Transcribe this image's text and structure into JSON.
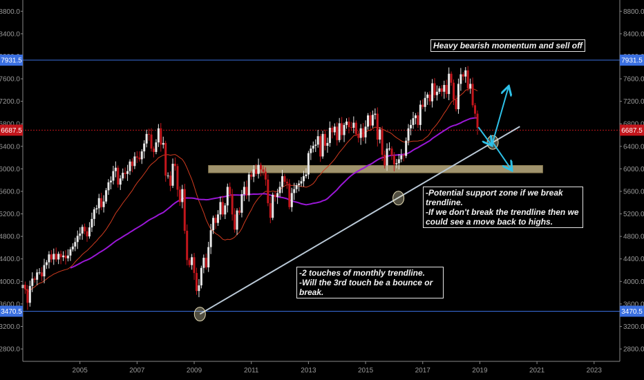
{
  "colors": {
    "background": "#000000",
    "bull": "#e8e8e8",
    "bear": "#c3161c",
    "ma_fast": "#d13b1f",
    "ma_slow": "#9a17d6",
    "trendline": "#b9c8d6",
    "level_line": "#3a6fe0",
    "current_line": "#c3161c",
    "zone": "#c9b98a",
    "arrow": "#2ec1e8"
  },
  "annotations": {
    "top": "Heavy bearish momentum and sell off",
    "middle": "-Potential support zone if we break trendline.\n-If we don't break the trendline then we\ncould see a move back to highs.",
    "bottom": "-2 touches of monthly trendline.\n-Will the 3rd touch be a bounce or break."
  },
  "price_labels": {
    "resistance": "7931.5",
    "current": "6687.5",
    "support": "3470.5"
  },
  "chart_data": {
    "type": "candlestick",
    "timeframe": "monthly",
    "y_ticks": [
      2800,
      3200,
      3600,
      4000,
      4400,
      4800,
      5200,
      5600,
      6000,
      6400,
      6800,
      7200,
      7600,
      8000,
      8400,
      8800
    ],
    "y_tick_labels": [
      "2800.0",
      "3200.0",
      "3600.0",
      "4000.0",
      "4400.0",
      "4800.0",
      "5200.0",
      "5600.0",
      "6000.0",
      "6400.0",
      "6800.0",
      "7200.0",
      "7600.0",
      "8000.0",
      "8400.0",
      "8800.0"
    ],
    "ylim": [
      2580,
      9000
    ],
    "xlim": [
      2003.0,
      2023.9
    ],
    "x_ticks": [
      2005,
      2007,
      2009,
      2011,
      2013,
      2015,
      2017,
      2019,
      2021,
      2023
    ],
    "x_tick_labels": [
      "2005",
      "2007",
      "2009",
      "2011",
      "2013",
      "2015",
      "2017",
      "2019",
      "2021",
      "2023"
    ],
    "horizontal_levels": [
      {
        "price": 7931.5,
        "kind": "resistance"
      },
      {
        "price": 6687.5,
        "kind": "current"
      },
      {
        "price": 3470.5,
        "kind": "support"
      }
    ],
    "support_zone": {
      "low": 5930,
      "high": 6060,
      "x_start": 2009.5,
      "x_end": 2021.2
    },
    "trendline": {
      "points": [
        [
          2009.2,
          3420
        ],
        [
          2016.15,
          5480
        ],
        [
          2019.45,
          6470
        ]
      ],
      "extend_to": 2020.4
    },
    "touch_markers": [
      [
        2009.2,
        3420
      ],
      [
        2016.15,
        5480
      ],
      [
        2019.45,
        6470
      ]
    ],
    "projection_arrows": [
      {
        "from": [
          2019.45,
          6470
        ],
        "to": [
          2020.0,
          7450
        ]
      },
      {
        "from": [
          2019.45,
          6470
        ],
        "to": [
          2020.1,
          5990
        ]
      },
      {
        "from": [
          2018.95,
          6740
        ],
        "to": [
          2019.4,
          6430
        ]
      }
    ],
    "closes": [
      [
        2003.0,
        3940
      ],
      [
        2003.083,
        3860
      ],
      [
        2003.167,
        3620
      ],
      [
        2003.25,
        3920
      ],
      [
        2003.333,
        4050
      ],
      [
        2003.417,
        4030
      ],
      [
        2003.5,
        4160
      ],
      [
        2003.583,
        4160
      ],
      [
        2003.667,
        4090
      ],
      [
        2003.75,
        4290
      ],
      [
        2003.833,
        4340
      ],
      [
        2003.917,
        4480
      ],
      [
        2004.0,
        4390
      ],
      [
        2004.083,
        4490
      ],
      [
        2004.167,
        4390
      ],
      [
        2004.25,
        4490
      ],
      [
        2004.333,
        4430
      ],
      [
        2004.417,
        4460
      ],
      [
        2004.5,
        4410
      ],
      [
        2004.583,
        4460
      ],
      [
        2004.667,
        4570
      ],
      [
        2004.75,
        4620
      ],
      [
        2004.833,
        4700
      ],
      [
        2004.917,
        4810
      ],
      [
        2005.0,
        4850
      ],
      [
        2005.083,
        4970
      ],
      [
        2005.167,
        4890
      ],
      [
        2005.25,
        4800
      ],
      [
        2005.333,
        4960
      ],
      [
        2005.417,
        5110
      ],
      [
        2005.5,
        5280
      ],
      [
        2005.583,
        5300
      ],
      [
        2005.667,
        5480
      ],
      [
        2005.75,
        5320
      ],
      [
        2005.833,
        5420
      ],
      [
        2005.917,
        5620
      ],
      [
        2006.0,
        5760
      ],
      [
        2006.083,
        5790
      ],
      [
        2006.167,
        5960
      ],
      [
        2006.25,
        6020
      ],
      [
        2006.333,
        5720
      ],
      [
        2006.417,
        5830
      ],
      [
        2006.5,
        5930
      ],
      [
        2006.583,
        5910
      ],
      [
        2006.667,
        5960
      ],
      [
        2006.75,
        6130
      ],
      [
        2006.833,
        6050
      ],
      [
        2006.917,
        6220
      ],
      [
        2007.0,
        6200
      ],
      [
        2007.083,
        6170
      ],
      [
        2007.167,
        6310
      ],
      [
        2007.25,
        6450
      ],
      [
        2007.333,
        6620
      ],
      [
        2007.417,
        6610
      ],
      [
        2007.5,
        6360
      ],
      [
        2007.583,
        6300
      ],
      [
        2007.667,
        6470
      ],
      [
        2007.75,
        6720
      ],
      [
        2007.833,
        6430
      ],
      [
        2007.917,
        6460
      ],
      [
        2008.0,
        5880
      ],
      [
        2008.083,
        5880
      ],
      [
        2008.167,
        5700
      ],
      [
        2008.25,
        6090
      ],
      [
        2008.333,
        6050
      ],
      [
        2008.417,
        5630
      ],
      [
        2008.5,
        5410
      ],
      [
        2008.583,
        5640
      ],
      [
        2008.667,
        4900
      ],
      [
        2008.75,
        4380
      ],
      [
        2008.833,
        4290
      ],
      [
        2008.917,
        4430
      ],
      [
        2009.0,
        4150
      ],
      [
        2009.083,
        3830
      ],
      [
        2009.167,
        3930
      ],
      [
        2009.25,
        4240
      ],
      [
        2009.333,
        4420
      ],
      [
        2009.417,
        4250
      ],
      [
        2009.5,
        4610
      ],
      [
        2009.583,
        4910
      ],
      [
        2009.667,
        5130
      ],
      [
        2009.75,
        5040
      ],
      [
        2009.833,
        5190
      ],
      [
        2009.917,
        5410
      ],
      [
        2010.0,
        5190
      ],
      [
        2010.083,
        5350
      ],
      [
        2010.167,
        5680
      ],
      [
        2010.25,
        5550
      ],
      [
        2010.333,
        5190
      ],
      [
        2010.417,
        4920
      ],
      [
        2010.5,
        5260
      ],
      [
        2010.583,
        5220
      ],
      [
        2010.667,
        5550
      ],
      [
        2010.75,
        5680
      ],
      [
        2010.833,
        5530
      ],
      [
        2010.917,
        5900
      ],
      [
        2011.0,
        5860
      ],
      [
        2011.083,
        5990
      ],
      [
        2011.167,
        5910
      ],
      [
        2011.25,
        6070
      ],
      [
        2011.333,
        5990
      ],
      [
        2011.417,
        5950
      ],
      [
        2011.5,
        5810
      ],
      [
        2011.583,
        5390
      ],
      [
        2011.667,
        5130
      ],
      [
        2011.75,
        5540
      ],
      [
        2011.833,
        5500
      ],
      [
        2011.917,
        5570
      ],
      [
        2012.0,
        5680
      ],
      [
        2012.083,
        5870
      ],
      [
        2012.167,
        5770
      ],
      [
        2012.25,
        5740
      ],
      [
        2012.333,
        5320
      ],
      [
        2012.417,
        5570
      ],
      [
        2012.5,
        5640
      ],
      [
        2012.583,
        5710
      ],
      [
        2012.667,
        5740
      ],
      [
        2012.75,
        5780
      ],
      [
        2012.833,
        5870
      ],
      [
        2012.917,
        5900
      ],
      [
        2013.0,
        6280
      ],
      [
        2013.083,
        6360
      ],
      [
        2013.167,
        6410
      ],
      [
        2013.25,
        6430
      ],
      [
        2013.333,
        6580
      ],
      [
        2013.417,
        6220
      ],
      [
        2013.5,
        6620
      ],
      [
        2013.583,
        6410
      ],
      [
        2013.667,
        6460
      ],
      [
        2013.75,
        6730
      ],
      [
        2013.833,
        6650
      ],
      [
        2013.917,
        6750
      ],
      [
        2014.0,
        6510
      ],
      [
        2014.083,
        6810
      ],
      [
        2014.167,
        6600
      ],
      [
        2014.25,
        6780
      ],
      [
        2014.333,
        6840
      ],
      [
        2014.417,
        6740
      ],
      [
        2014.5,
        6730
      ],
      [
        2014.583,
        6820
      ],
      [
        2014.667,
        6620
      ],
      [
        2014.75,
        6550
      ],
      [
        2014.833,
        6720
      ],
      [
        2014.917,
        6560
      ],
      [
        2015.0,
        6750
      ],
      [
        2015.083,
        6950
      ],
      [
        2015.167,
        6770
      ],
      [
        2015.25,
        6960
      ],
      [
        2015.333,
        6980
      ],
      [
        2015.417,
        6520
      ],
      [
        2015.5,
        6700
      ],
      [
        2015.583,
        6250
      ],
      [
        2015.667,
        6060
      ],
      [
        2015.75,
        6360
      ],
      [
        2015.833,
        6360
      ],
      [
        2015.917,
        6240
      ],
      [
        2016.0,
        6080
      ],
      [
        2016.083,
        6100
      ],
      [
        2016.167,
        6170
      ],
      [
        2016.25,
        6240
      ],
      [
        2016.333,
        6230
      ],
      [
        2016.417,
        6500
      ],
      [
        2016.5,
        6720
      ],
      [
        2016.583,
        6780
      ],
      [
        2016.667,
        6900
      ],
      [
        2016.75,
        6950
      ],
      [
        2016.833,
        6780
      ],
      [
        2016.917,
        7140
      ],
      [
        2017.0,
        7100
      ],
      [
        2017.083,
        7260
      ],
      [
        2017.167,
        7320
      ],
      [
        2017.25,
        7200
      ],
      [
        2017.333,
        7520
      ],
      [
        2017.417,
        7310
      ],
      [
        2017.5,
        7370
      ],
      [
        2017.583,
        7430
      ],
      [
        2017.667,
        7370
      ],
      [
        2017.75,
        7490
      ],
      [
        2017.833,
        7330
      ],
      [
        2017.917,
        7690
      ],
      [
        2018.0,
        7530
      ],
      [
        2018.083,
        7230
      ],
      [
        2018.167,
        7060
      ],
      [
        2018.25,
        7510
      ],
      [
        2018.333,
        7680
      ],
      [
        2018.417,
        7640
      ],
      [
        2018.5,
        7750
      ],
      [
        2018.583,
        7430
      ],
      [
        2018.667,
        7510
      ],
      [
        2018.75,
        7130
      ],
      [
        2018.833,
        6980
      ],
      [
        2018.917,
        6730
      ]
    ]
  }
}
